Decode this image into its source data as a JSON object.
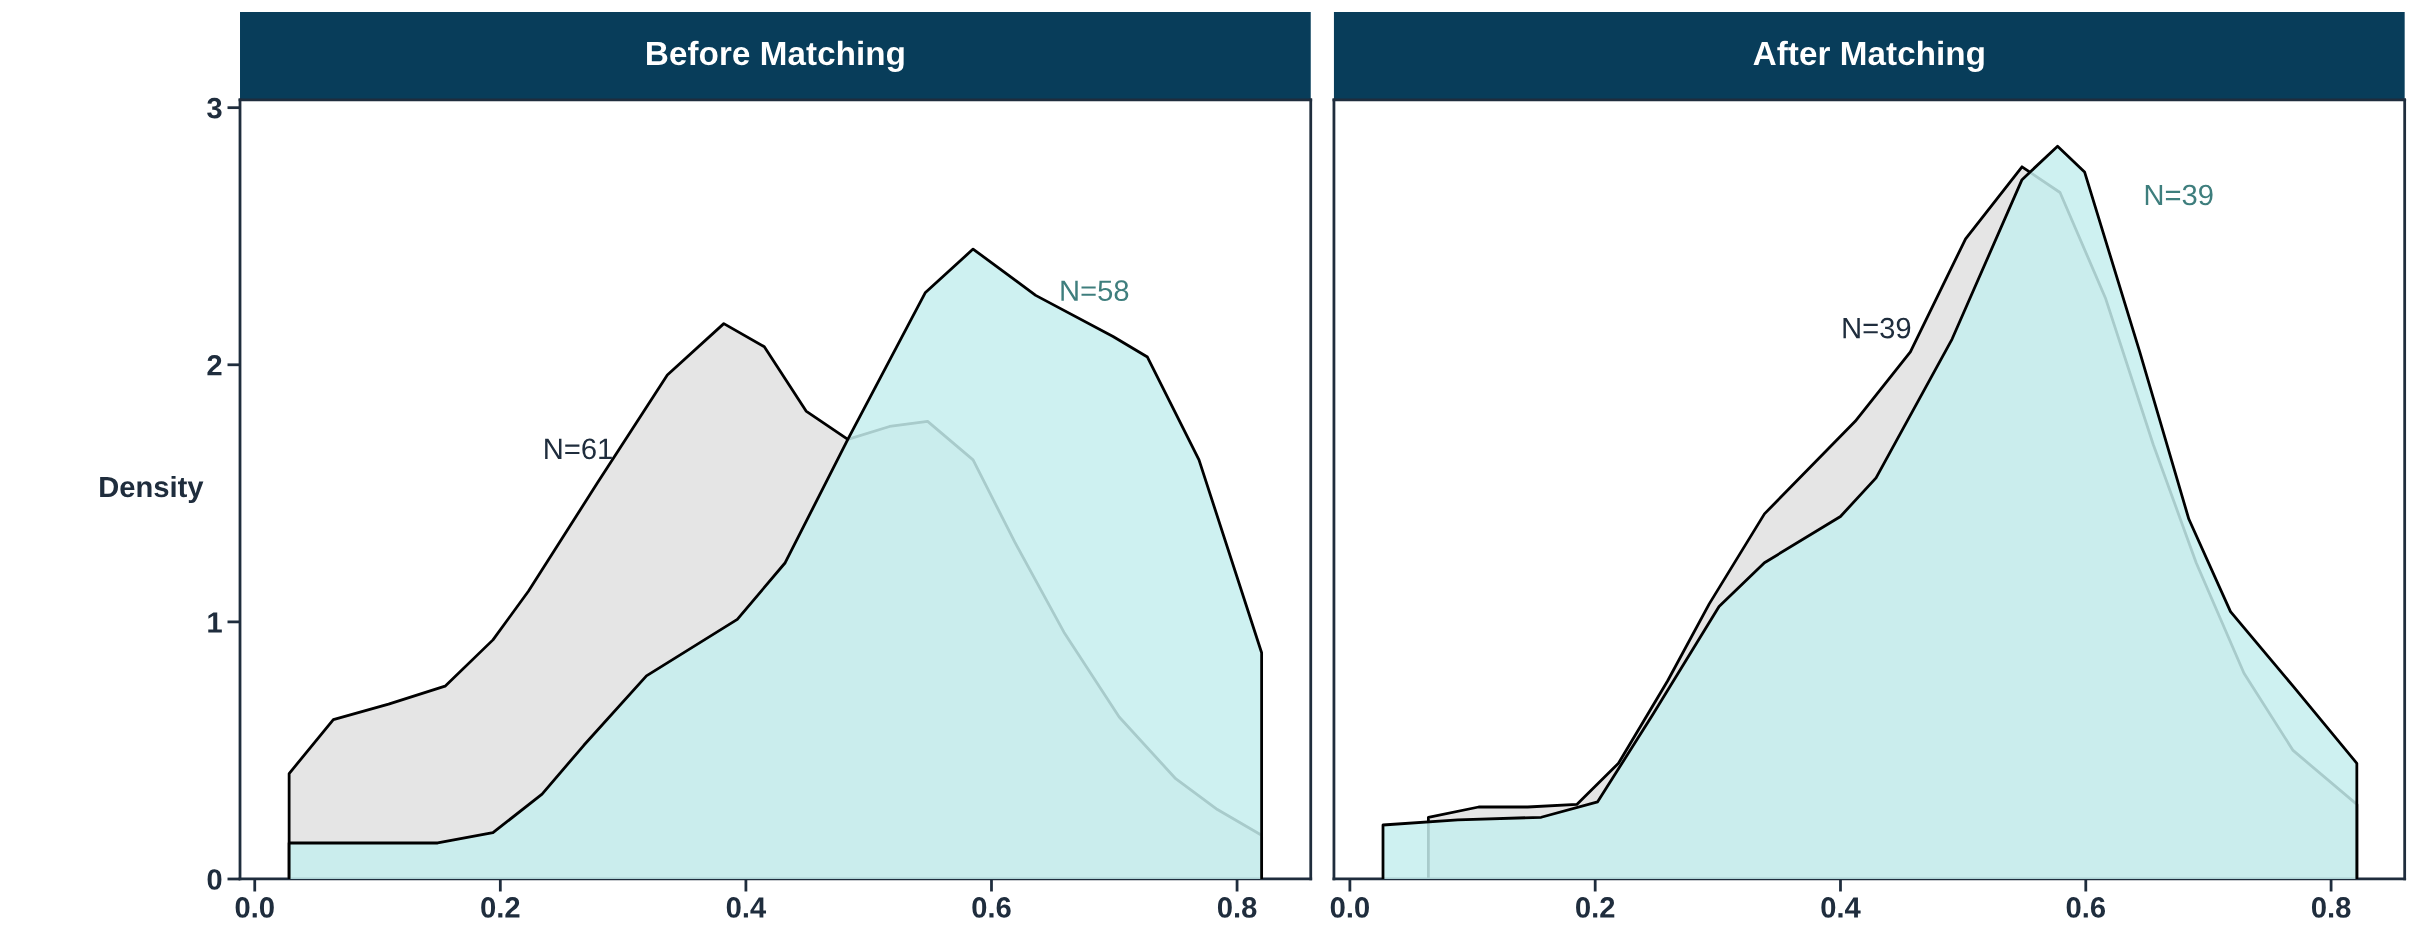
{
  "chart_data": [
    {
      "type": "area",
      "title": "Before Matching",
      "ylabel": "Density",
      "xlim": [
        -0.012,
        0.86
      ],
      "xticks": [
        {
          "value": 0,
          "label": "0.0"
        },
        0.2,
        0.4,
        0.6,
        0.8
      ],
      "ylim": [
        0,
        3.03
      ],
      "yticks": [
        0,
        1,
        2,
        3
      ],
      "grid": false,
      "legend": false,
      "series": [
        {
          "name": "N=61",
          "color": "#e5e5e5",
          "x": [
            0.028,
            0.064,
            0.109,
            0.155,
            0.194,
            0.223,
            0.279,
            0.336,
            0.382,
            0.415,
            0.449,
            0.483,
            0.517,
            0.548,
            0.585,
            0.619,
            0.659,
            0.704,
            0.75,
            0.784,
            0.82
          ],
          "values": [
            0.41,
            0.62,
            0.68,
            0.75,
            0.93,
            1.12,
            1.54,
            1.96,
            2.16,
            2.07,
            1.82,
            1.71,
            1.76,
            1.78,
            1.63,
            1.31,
            0.96,
            0.63,
            0.39,
            0.27,
            0.17
          ]
        },
        {
          "name": "N=58",
          "color": "#c5efee",
          "x": [
            0.028,
            0.121,
            0.149,
            0.194,
            0.234,
            0.268,
            0.319,
            0.393,
            0.432,
            0.483,
            0.546,
            0.585,
            0.636,
            0.699,
            0.727,
            0.769,
            0.82
          ],
          "values": [
            0.14,
            0.14,
            0.14,
            0.18,
            0.33,
            0.52,
            0.79,
            1.01,
            1.23,
            1.71,
            2.28,
            2.45,
            2.27,
            2.11,
            2.03,
            1.63,
            0.88
          ]
        }
      ]
    },
    {
      "type": "area",
      "title": "After Matching",
      "xlim": [
        -0.013,
        0.86
      ],
      "xticks": [
        {
          "value": 0,
          "label": "0.0"
        },
        0.2,
        0.4,
        0.6,
        0.8
      ],
      "ylim": [
        0,
        3.03
      ],
      "tick_labels": "x",
      "grid": false,
      "legend": false,
      "series": [
        {
          "name": "N=39",
          "color": "#e5e5e5",
          "x": [
            0.064,
            0.105,
            0.145,
            0.185,
            0.219,
            0.259,
            0.293,
            0.338,
            0.412,
            0.457,
            0.502,
            0.548,
            0.579,
            0.616,
            0.655,
            0.69,
            0.729,
            0.769,
            0.821
          ],
          "values": [
            0.24,
            0.28,
            0.28,
            0.29,
            0.45,
            0.77,
            1.07,
            1.42,
            1.78,
            2.05,
            2.49,
            2.77,
            2.67,
            2.26,
            1.69,
            1.23,
            0.8,
            0.5,
            0.29
          ]
        },
        {
          "name": "N=39",
          "color": "#c5efee",
          "x": [
            0.027,
            0.088,
            0.156,
            0.202,
            0.247,
            0.301,
            0.338,
            0.4,
            0.429,
            0.491,
            0.548,
            0.577,
            0.599,
            0.644,
            0.684,
            0.718,
            0.769,
            0.821
          ],
          "values": [
            0.21,
            0.23,
            0.24,
            0.3,
            0.64,
            1.06,
            1.23,
            1.41,
            1.56,
            2.1,
            2.72,
            2.85,
            2.75,
            2.05,
            1.4,
            1.04,
            0.75,
            0.45
          ]
        }
      ]
    }
  ]
}
